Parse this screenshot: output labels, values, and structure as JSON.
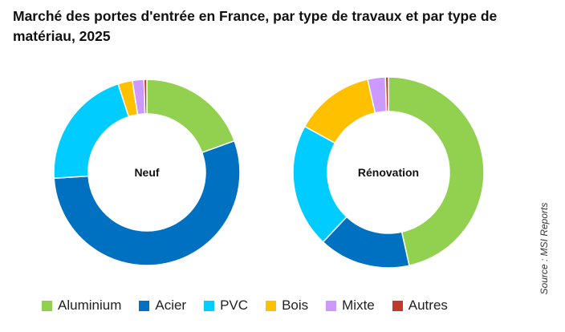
{
  "chart_data": {
    "type": "pie",
    "title": "Marché des portes d'entrée en France, par type de travaux et par type de matériau, 2025",
    "source": "Source : MSI Reports",
    "categories": [
      "Aluminium",
      "Acier",
      "PVC",
      "Bois",
      "Mixte",
      "Autres"
    ],
    "colors": [
      "#92d050",
      "#0070c0",
      "#00ccff",
      "#ffc000",
      "#cc99ff",
      "#c0392b"
    ],
    "charts": [
      {
        "label": "Neuf",
        "values": [
          19.5,
          54.5,
          21,
          2.5,
          2,
          0.5
        ]
      },
      {
        "label": "Rénovation",
        "values": [
          46.5,
          15.5,
          21,
          13.5,
          3,
          0.5
        ]
      }
    ],
    "legend_position": "bottom"
  }
}
